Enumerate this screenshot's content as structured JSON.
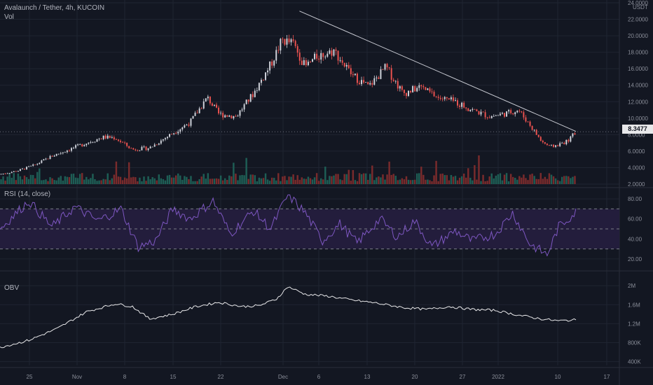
{
  "header": {
    "symbol_line": "Avalaunch / Tether, 4h, KUCOIN",
    "vol_label": "Vol",
    "currency": "USDT"
  },
  "last_price": "8.3477",
  "panes": {
    "rsi_label": "RSI (14, close)",
    "obv_label": "OBV"
  },
  "colors": {
    "background": "#131722",
    "grid": "#1f2431",
    "up": "#d1d4dc",
    "down": "#ef5350",
    "vol_up": "#1e5e55",
    "vol_down": "#7a2b2c",
    "rsi_line": "#7e57c2",
    "rsi_band": "#231d3c",
    "obv_line": "#e8e8ea",
    "trendline": "#c9cbd3",
    "axis_text": "#8a8e99"
  },
  "chart_data": [
    {
      "type": "candlestick",
      "title": "Avalaunch / Tether, 4h, KUCOIN",
      "x_labels": [
        "25",
        "Nov",
        "8",
        "15",
        "22",
        "Dec",
        "6",
        "13",
        "20",
        "27",
        "2022",
        "10",
        "17"
      ],
      "y_ticks": [
        "24.0000",
        "22.0000",
        "20.0000",
        "18.0000",
        "16.0000",
        "14.0000",
        "12.0000",
        "10.0000",
        "8.0000",
        "6.0000",
        "4.0000",
        "2.0000"
      ],
      "ylim": [
        2,
        24
      ],
      "close_path": [
        {
          "x": 0,
          "y": 3.2
        },
        {
          "x": 0.03,
          "y": 3.6
        },
        {
          "x": 0.06,
          "y": 4.3
        },
        {
          "x": 0.09,
          "y": 5.4
        },
        {
          "x": 0.12,
          "y": 6.2
        },
        {
          "x": 0.15,
          "y": 7.0
        },
        {
          "x": 0.18,
          "y": 7.7
        },
        {
          "x": 0.2,
          "y": 7.6
        },
        {
          "x": 0.23,
          "y": 6.2
        },
        {
          "x": 0.26,
          "y": 6.4
        },
        {
          "x": 0.3,
          "y": 8.2
        },
        {
          "x": 0.33,
          "y": 9.5
        },
        {
          "x": 0.36,
          "y": 12.5
        },
        {
          "x": 0.38,
          "y": 10.5
        },
        {
          "x": 0.41,
          "y": 10.2
        },
        {
          "x": 0.44,
          "y": 13.0
        },
        {
          "x": 0.47,
          "y": 16.5
        },
        {
          "x": 0.49,
          "y": 19.5
        },
        {
          "x": 0.51,
          "y": 19.0
        },
        {
          "x": 0.53,
          "y": 16.2
        },
        {
          "x": 0.55,
          "y": 17.5
        },
        {
          "x": 0.58,
          "y": 18.2
        },
        {
          "x": 0.61,
          "y": 15.3
        },
        {
          "x": 0.64,
          "y": 13.8
        },
        {
          "x": 0.67,
          "y": 16.2
        },
        {
          "x": 0.7,
          "y": 13.0
        },
        {
          "x": 0.73,
          "y": 13.8
        },
        {
          "x": 0.76,
          "y": 12.5
        },
        {
          "x": 0.79,
          "y": 12.0
        },
        {
          "x": 0.82,
          "y": 11.0
        },
        {
          "x": 0.85,
          "y": 10.2
        },
        {
          "x": 0.88,
          "y": 10.6
        },
        {
          "x": 0.9,
          "y": 11.0
        },
        {
          "x": 0.92,
          "y": 9.2
        },
        {
          "x": 0.94,
          "y": 7.2
        },
        {
          "x": 0.955,
          "y": 6.5
        },
        {
          "x": 0.97,
          "y": 6.8
        },
        {
          "x": 0.985,
          "y": 7.2
        },
        {
          "x": 1.0,
          "y": 8.3
        }
      ],
      "trendline": [
        {
          "x": 0.52,
          "y": 23.0
        },
        {
          "x": 1.0,
          "y": 8.4
        }
      ],
      "last_price": 8.3477
    },
    {
      "type": "line",
      "name": "RSI (14, close)",
      "y_ticks": [
        "80.00",
        "60.00",
        "40.00",
        "20.00"
      ],
      "ylim": [
        15,
        85
      ],
      "band": [
        30,
        70
      ],
      "midline": 50,
      "points": [
        {
          "x": 0,
          "y": 50
        },
        {
          "x": 0.05,
          "y": 78
        },
        {
          "x": 0.09,
          "y": 52
        },
        {
          "x": 0.13,
          "y": 72
        },
        {
          "x": 0.17,
          "y": 58
        },
        {
          "x": 0.21,
          "y": 70
        },
        {
          "x": 0.24,
          "y": 32
        },
        {
          "x": 0.27,
          "y": 38
        },
        {
          "x": 0.3,
          "y": 70
        },
        {
          "x": 0.33,
          "y": 60
        },
        {
          "x": 0.37,
          "y": 78
        },
        {
          "x": 0.4,
          "y": 45
        },
        {
          "x": 0.44,
          "y": 68
        },
        {
          "x": 0.47,
          "y": 50
        },
        {
          "x": 0.5,
          "y": 84
        },
        {
          "x": 0.53,
          "y": 66
        },
        {
          "x": 0.56,
          "y": 38
        },
        {
          "x": 0.59,
          "y": 55
        },
        {
          "x": 0.62,
          "y": 36
        },
        {
          "x": 0.66,
          "y": 60
        },
        {
          "x": 0.69,
          "y": 42
        },
        {
          "x": 0.72,
          "y": 58
        },
        {
          "x": 0.75,
          "y": 32
        },
        {
          "x": 0.79,
          "y": 48
        },
        {
          "x": 0.82,
          "y": 38
        },
        {
          "x": 0.86,
          "y": 45
        },
        {
          "x": 0.89,
          "y": 66
        },
        {
          "x": 0.92,
          "y": 35
        },
        {
          "x": 0.95,
          "y": 24
        },
        {
          "x": 0.97,
          "y": 52
        },
        {
          "x": 1.0,
          "y": 67
        }
      ]
    },
    {
      "type": "line",
      "name": "OBV",
      "y_ticks": [
        "2M",
        "1.6M",
        "1.2M",
        "800K",
        "400K"
      ],
      "ylim": [
        350000,
        2150000
      ],
      "points": [
        {
          "x": 0,
          "y": 700000
        },
        {
          "x": 0.05,
          "y": 850000
        },
        {
          "x": 0.1,
          "y": 1100000
        },
        {
          "x": 0.15,
          "y": 1450000
        },
        {
          "x": 0.2,
          "y": 1620000
        },
        {
          "x": 0.23,
          "y": 1560000
        },
        {
          "x": 0.26,
          "y": 1300000
        },
        {
          "x": 0.3,
          "y": 1400000
        },
        {
          "x": 0.34,
          "y": 1560000
        },
        {
          "x": 0.38,
          "y": 1650000
        },
        {
          "x": 0.42,
          "y": 1560000
        },
        {
          "x": 0.45,
          "y": 1580000
        },
        {
          "x": 0.48,
          "y": 1720000
        },
        {
          "x": 0.5,
          "y": 1980000
        },
        {
          "x": 0.53,
          "y": 1820000
        },
        {
          "x": 0.57,
          "y": 1780000
        },
        {
          "x": 0.61,
          "y": 1700000
        },
        {
          "x": 0.65,
          "y": 1640000
        },
        {
          "x": 0.7,
          "y": 1540000
        },
        {
          "x": 0.74,
          "y": 1500000
        },
        {
          "x": 0.78,
          "y": 1560000
        },
        {
          "x": 0.82,
          "y": 1500000
        },
        {
          "x": 0.86,
          "y": 1480000
        },
        {
          "x": 0.9,
          "y": 1380000
        },
        {
          "x": 0.94,
          "y": 1300000
        },
        {
          "x": 0.97,
          "y": 1260000
        },
        {
          "x": 1.0,
          "y": 1280000
        }
      ]
    }
  ]
}
